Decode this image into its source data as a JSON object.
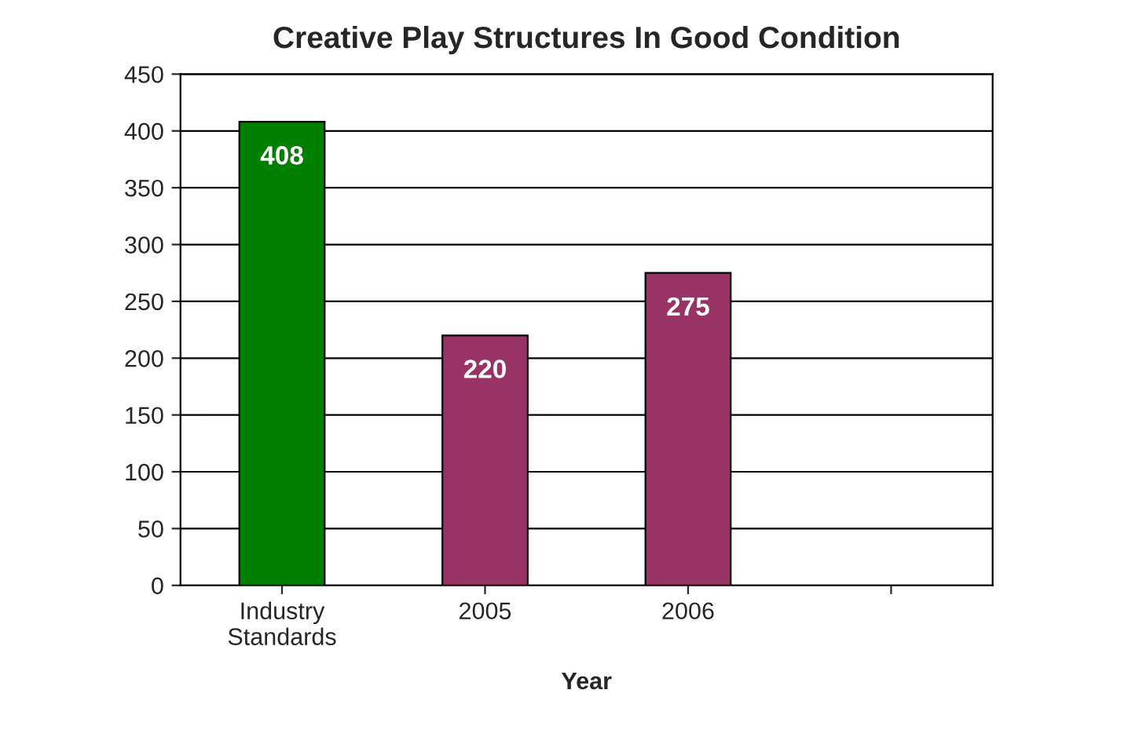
{
  "chart_data": {
    "type": "bar",
    "title": "Creative Play Structures In Good Condition",
    "xlabel": "Year",
    "categories": [
      "Industry\nStandards",
      "2005",
      "2006",
      null
    ],
    "values": [
      408,
      220,
      275,
      null
    ],
    "colors": [
      "#008000",
      "#993366",
      "#993366",
      "#993366"
    ],
    "ylim": [
      0,
      450
    ],
    "yticks": [
      0,
      50,
      100,
      150,
      200,
      250,
      300,
      350,
      400,
      450
    ],
    "grid": "y",
    "data_labels": true
  }
}
